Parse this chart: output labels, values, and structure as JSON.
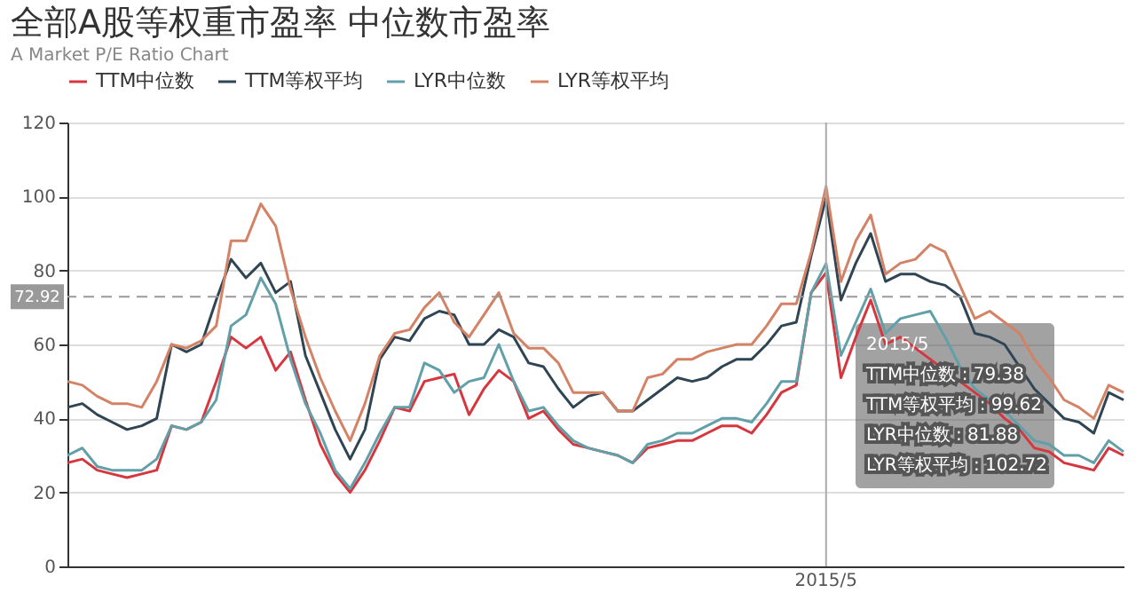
{
  "chart_data": {
    "type": "line",
    "title": "全部A股等权重市盈率 中位数市盈率",
    "subtitle": "A Market P/E Ratio Chart",
    "categories": [
      null,
      null,
      null,
      null,
      null,
      null,
      null,
      null,
      null,
      null,
      null,
      null,
      null,
      null,
      null,
      null,
      null,
      null,
      null,
      null,
      null,
      null,
      null,
      null,
      null,
      null,
      null,
      null,
      null,
      null,
      null,
      null,
      null,
      null,
      null,
      null,
      null,
      null,
      null,
      null,
      null,
      null,
      null,
      null,
      null,
      null,
      null,
      null,
      null,
      null,
      null,
      "2015/5",
      null,
      null,
      null,
      null,
      null,
      null,
      null,
      null,
      null,
      null,
      null,
      null,
      null,
      null,
      null,
      null,
      null,
      null,
      null,
      null
    ],
    "series": [
      {
        "name": "TTM中位数",
        "color": "#d7363f",
        "values": [
          28,
          29,
          26,
          25,
          24,
          25,
          26,
          38,
          37,
          39,
          50,
          62,
          59,
          62,
          53,
          58,
          45,
          33,
          25,
          20,
          26,
          34,
          43,
          42,
          50,
          51,
          52,
          41,
          48,
          53,
          50,
          40,
          42,
          37,
          33,
          32,
          31,
          30,
          28,
          32,
          33,
          34,
          34,
          36,
          38,
          38,
          36,
          41,
          47,
          49,
          74,
          79.38,
          51,
          62,
          72,
          60,
          62,
          59,
          56,
          53,
          50,
          47,
          44,
          40,
          37,
          32,
          31,
          28,
          27,
          26,
          32,
          30
        ]
      },
      {
        "name": "TTM等权平均",
        "color": "#2f4554",
        "values": [
          43,
          44,
          41,
          39,
          37,
          38,
          40,
          60,
          58,
          60,
          72,
          83,
          78,
          82,
          74,
          77,
          57,
          47,
          37,
          29,
          37,
          56,
          62,
          61,
          67,
          69,
          68,
          60,
          60,
          64,
          62,
          55,
          54,
          48,
          43,
          46,
          47,
          42,
          42,
          45,
          48,
          51,
          50,
          51,
          54,
          56,
          56,
          60,
          65,
          66,
          84,
          99.62,
          72,
          82,
          90,
          77,
          79,
          79,
          77,
          76,
          73,
          63,
          62,
          60,
          54,
          48,
          44,
          40,
          39,
          36,
          47,
          45
        ]
      },
      {
        "name": "LYR中位数",
        "color": "#61a0a8",
        "values": [
          30,
          32,
          27,
          26,
          26,
          26,
          29,
          38,
          37,
          39,
          45,
          65,
          68,
          78,
          71,
          56,
          44,
          36,
          26,
          21,
          28,
          36,
          43,
          43,
          55,
          53,
          47,
          50,
          51,
          60,
          50,
          42,
          43,
          38,
          34,
          32,
          31,
          30,
          28,
          33,
          34,
          36,
          36,
          38,
          40,
          40,
          39,
          44,
          50,
          50,
          74,
          81.88,
          57,
          66,
          75,
          63,
          67,
          68,
          69,
          62,
          54,
          48,
          45,
          42,
          38,
          34,
          33,
          30,
          30,
          28,
          34,
          31
        ]
      },
      {
        "name": "LYR等权平均",
        "color": "#d48265",
        "values": [
          50,
          49,
          46,
          44,
          44,
          43,
          50,
          60,
          59,
          61,
          65,
          88,
          88,
          98,
          92,
          75,
          62,
          51,
          42,
          34,
          44,
          57,
          63,
          64,
          70,
          74,
          66,
          62,
          68,
          74,
          63,
          59,
          59,
          55,
          47,
          47,
          47,
          42,
          42,
          51,
          52,
          56,
          56,
          58,
          59,
          60,
          60,
          65,
          71,
          71,
          85,
          102.72,
          77,
          88,
          95,
          79,
          82,
          83,
          87,
          85,
          76,
          67,
          69,
          66,
          63,
          56,
          51,
          45,
          43,
          40,
          49,
          47
        ]
      }
    ],
    "ylim": [
      0,
      120
    ],
    "yticks": [
      0,
      20,
      40,
      60,
      80,
      100,
      120
    ],
    "grid": "y",
    "legend": "top",
    "marker": "none",
    "line_style": "solid",
    "ref_lines": [
      {
        "axis": "y",
        "value": 72.92,
        "label": "72.92",
        "color": "#999999",
        "line_style": "dashed"
      },
      {
        "axis": "x",
        "value": "2015/5",
        "color": "#aaaaaa",
        "line_style": "solid"
      }
    ],
    "annotations": [
      "TTM中位数 : 79.38",
      "TTM等权平均 : 99.62",
      "LYR中位数 : 81.88",
      "LYR等权平均 : 102.72"
    ]
  }
}
